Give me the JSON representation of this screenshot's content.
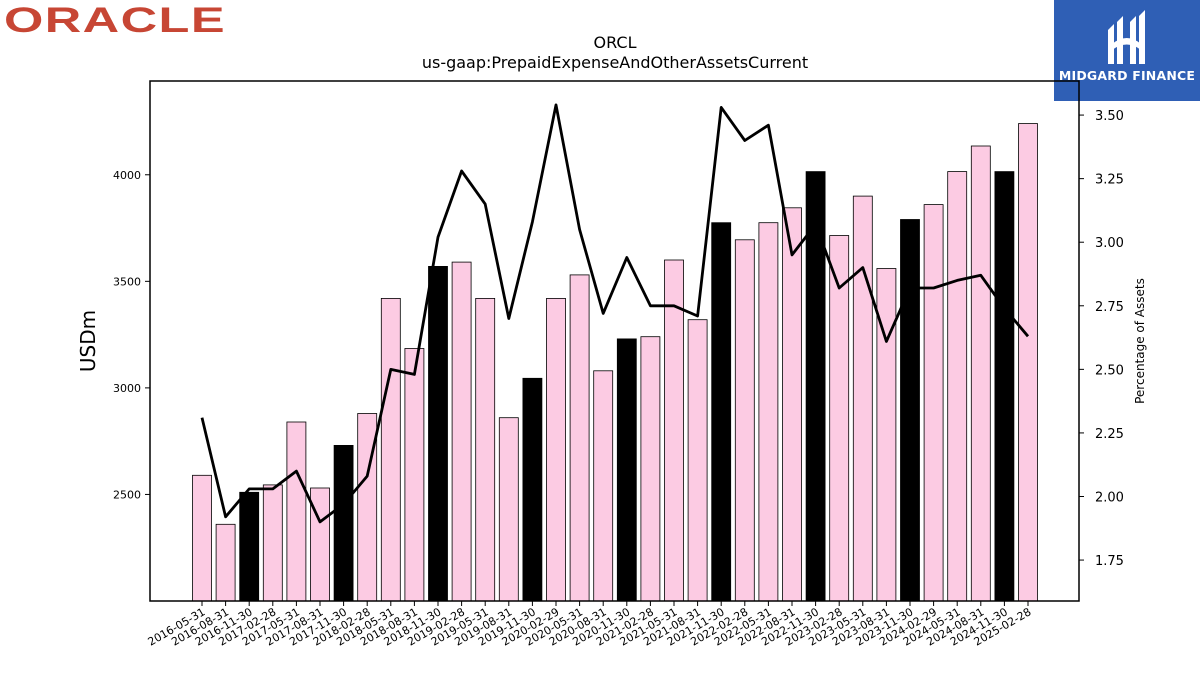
{
  "logos": {
    "oracle_text": "ORACLE",
    "oracle_color": "#c74634",
    "midgard_text": "MIDGARD FINANCE",
    "midgard_color": "#2f5fb5"
  },
  "chart_data": {
    "type": "bar",
    "title": "ORCL",
    "subtitle": "us-gaap:PrepaidExpenseAndOtherAssetsCurrent",
    "ylabel": "USDm",
    "ylabel_right": "Percentage of Assets",
    "categories": [
      "2016-05-31",
      "2016-08-31",
      "2016-11-30",
      "2017-02-28",
      "2017-05-31",
      "2017-08-31",
      "2017-11-30",
      "2018-02-28",
      "2018-05-31",
      "2018-08-31",
      "2018-11-30",
      "2019-02-28",
      "2019-05-31",
      "2019-08-31",
      "2019-11-30",
      "2020-02-29",
      "2020-05-31",
      "2020-08-31",
      "2020-11-30",
      "2021-02-28",
      "2021-05-31",
      "2021-08-31",
      "2021-11-30",
      "2022-02-28",
      "2022-05-31",
      "2022-08-31",
      "2022-11-30",
      "2023-02-28",
      "2023-05-31",
      "2023-08-31",
      "2023-11-30",
      "2024-02-29",
      "2024-05-31",
      "2024-08-31",
      "2024-11-30",
      "2025-02-28"
    ],
    "series": [
      {
        "type": "bar",
        "axis": "left",
        "values": [
          2590,
          2360,
          2510,
          2545,
          2840,
          2530,
          2730,
          2880,
          3420,
          3185,
          3570,
          3590,
          3420,
          2860,
          3045,
          3420,
          3530,
          3080,
          3230,
          3240,
          3600,
          3320,
          3775,
          3695,
          3775,
          3845,
          4015,
          3715,
          3900,
          3560,
          3790,
          3860,
          4015,
          4135,
          4015,
          4240
        ],
        "highlight": [
          false,
          false,
          true,
          false,
          false,
          false,
          true,
          false,
          false,
          false,
          true,
          false,
          false,
          false,
          true,
          false,
          false,
          false,
          true,
          false,
          false,
          false,
          true,
          false,
          false,
          false,
          true,
          false,
          false,
          false,
          true,
          false,
          false,
          false,
          true,
          false
        ]
      },
      {
        "type": "line",
        "axis": "right",
        "values": [
          2.31,
          1.92,
          2.03,
          2.03,
          2.1,
          1.9,
          1.97,
          2.08,
          2.5,
          2.48,
          3.02,
          3.28,
          3.15,
          2.7,
          3.08,
          3.54,
          3.05,
          2.72,
          2.94,
          2.75,
          2.75,
          2.71,
          3.53,
          3.4,
          3.46,
          2.95,
          3.07,
          2.82,
          2.9,
          2.61,
          2.82,
          2.82,
          2.85,
          2.87,
          2.74,
          2.63
        ]
      }
    ],
    "ylim": [
      2000,
      4440
    ],
    "ylim_right": [
      1.589,
      3.634
    ],
    "yticks": [
      2500,
      3000,
      3500,
      4000
    ],
    "yticks_right": [
      "1.75",
      "2.00",
      "2.25",
      "2.50",
      "2.75",
      "3.00",
      "3.25",
      "3.50"
    ],
    "colors": {
      "bar": "#fccbe3",
      "bar_highlight": "#000000",
      "line": "#000000"
    },
    "grid": false,
    "legend": "none"
  }
}
